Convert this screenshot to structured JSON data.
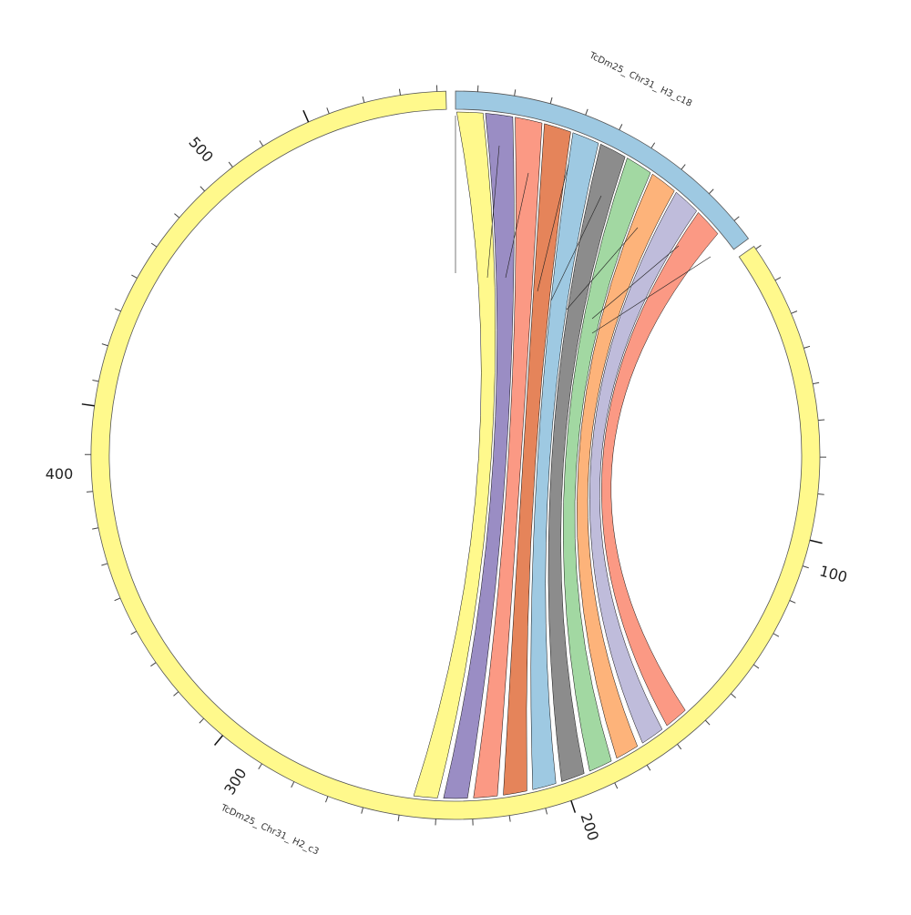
{
  "chromosomes": [
    {
      "id": "h2",
      "name": "TcDm25_ Chr31_ H2_c3",
      "color": "#fff98c"
    },
    {
      "id": "h3",
      "name": "TcDm25_ Chr31_ H3_c18",
      "color": "#9ec9e2"
    }
  ],
  "tick_labels": [
    "100",
    "200",
    "300",
    "400",
    "500"
  ],
  "links": [
    {
      "color": "#fff98c"
    },
    {
      "color": "#9a8dc4"
    },
    {
      "color": "#fb9984"
    },
    {
      "color": "#e5845a"
    },
    {
      "color": "#9ec9e2"
    },
    {
      "color": "#8c8c8c"
    },
    {
      "color": "#a2d8a2"
    },
    {
      "color": "#fdb37a"
    },
    {
      "color": "#bfbcdb"
    },
    {
      "color": "#fb9984"
    }
  ]
}
